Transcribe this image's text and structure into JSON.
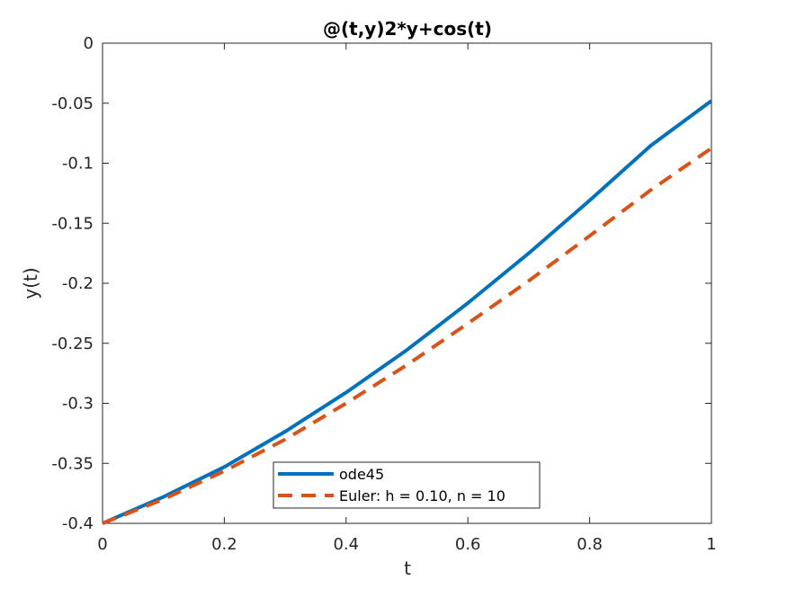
{
  "chart_data": {
    "type": "line",
    "title": "@(t,y)2*y+cos(t)",
    "xlabel": "t",
    "ylabel": "y(t)",
    "xlim": [
      0,
      1
    ],
    "ylim": [
      -0.4,
      0
    ],
    "x_ticks": [
      "0",
      "0.2",
      "0.4",
      "0.6",
      "0.8",
      "1"
    ],
    "x_tick_values": [
      0,
      0.2,
      0.4,
      0.6,
      0.8,
      1
    ],
    "y_ticks": [
      "0",
      "-0.05",
      "-0.1",
      "-0.15",
      "-0.2",
      "-0.25",
      "-0.3",
      "-0.35",
      "-0.4"
    ],
    "y_tick_values": [
      0,
      -0.05,
      -0.1,
      -0.15,
      -0.2,
      -0.25,
      -0.3,
      -0.35,
      -0.4
    ],
    "grid": false,
    "legend_position": "bottom-center",
    "series": [
      {
        "name": "ode45",
        "color": "#0072BD",
        "style": "solid",
        "x": [
          0,
          0.1,
          0.2,
          0.3,
          0.4,
          0.5,
          0.6,
          0.7,
          0.8,
          0.9,
          1.0
        ],
        "y": [
          -0.4,
          -0.378,
          -0.353,
          -0.3235,
          -0.291,
          -0.2555,
          -0.2165,
          -0.175,
          -0.131,
          -0.0855,
          -0.048
        ]
      },
      {
        "name": "Euler: h = 0.10, n = 10",
        "color": "#D95319",
        "style": "dashed",
        "x": [
          0,
          0.1,
          0.2,
          0.3,
          0.4,
          0.5,
          0.6,
          0.7,
          0.8,
          0.9,
          1.0
        ],
        "y": [
          -0.4,
          -0.38,
          -0.3565,
          -0.33,
          -0.3,
          -0.268,
          -0.2335,
          -0.198,
          -0.1605,
          -0.1225,
          -0.0875
        ]
      }
    ]
  }
}
